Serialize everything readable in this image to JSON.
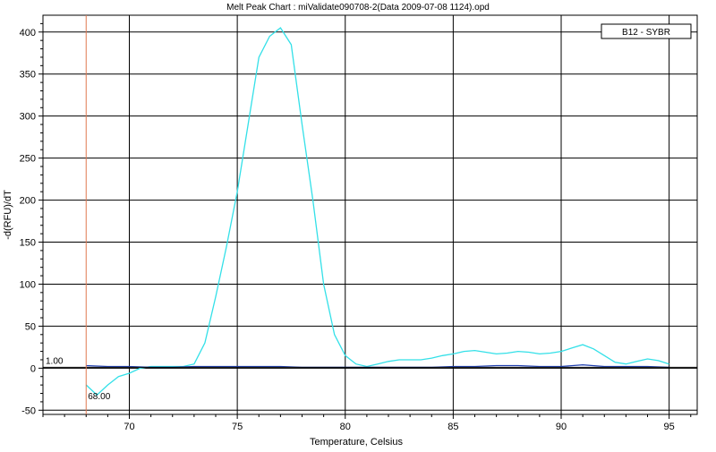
{
  "chart_data": {
    "type": "line",
    "title": "Melt Peak Chart : miValidate090708-2(Data 2009-07-08 1124).opd",
    "xlabel": "Temperature, Celsius",
    "ylabel": "-d(RFU)/dT",
    "xlim": [
      66.0,
      96.3
    ],
    "ylim": [
      -55,
      420
    ],
    "grid": true,
    "legend": {
      "position": "top-right",
      "entries": [
        "B12 - SYBR"
      ]
    },
    "x_ticks": [
      70,
      75,
      80,
      85,
      90,
      95
    ],
    "y_ticks": [
      -50,
      0,
      50,
      100,
      150,
      200,
      250,
      300,
      350,
      400
    ],
    "threshold": {
      "value": 1.0,
      "label": "1.00",
      "color": "#000000"
    },
    "marker": {
      "value": 68.0,
      "label": "68.00",
      "color": "#e07850"
    },
    "series": [
      {
        "name": "B12 - SYBR",
        "color": "#33e0e8",
        "x": [
          68.0,
          68.5,
          69.0,
          69.5,
          70.0,
          70.5,
          71.0,
          71.5,
          72.0,
          72.5,
          73.0,
          73.5,
          74.0,
          74.5,
          75.0,
          75.5,
          76.0,
          76.5,
          77.0,
          77.5,
          78.0,
          78.5,
          79.0,
          79.5,
          80.0,
          80.5,
          81.0,
          81.5,
          82.0,
          82.5,
          83.0,
          83.5,
          84.0,
          84.5,
          85.0,
          85.5,
          86.0,
          86.5,
          87.0,
          87.5,
          88.0,
          88.5,
          89.0,
          89.5,
          90.0,
          90.5,
          91.0,
          91.5,
          92.0,
          92.5,
          93.0,
          93.5,
          94.0,
          94.5,
          95.0
        ],
        "values": [
          -20,
          -32,
          -20,
          -10,
          -6,
          0,
          2,
          2,
          2,
          2,
          5,
          30,
          85,
          145,
          210,
          290,
          370,
          395,
          405,
          385,
          290,
          200,
          100,
          40,
          15,
          5,
          2,
          5,
          8,
          10,
          10,
          10,
          12,
          15,
          17,
          20,
          21,
          19,
          17,
          18,
          20,
          19,
          17,
          18,
          20,
          24,
          28,
          23,
          15,
          7,
          5,
          8,
          11,
          9,
          5
        ]
      },
      {
        "name": "",
        "color": "#1f3fb0",
        "x": [
          68.0,
          69.0,
          70.0,
          71.0,
          72.0,
          73.0,
          74.0,
          75.0,
          76.0,
          77.0,
          78.0,
          79.0,
          80.0,
          81.0,
          82.0,
          83.0,
          84.0,
          85.0,
          86.0,
          87.0,
          88.0,
          89.0,
          90.0,
          91.0,
          92.0,
          93.0,
          94.0,
          95.0
        ],
        "values": [
          3,
          2,
          2,
          1,
          1,
          2,
          2,
          2,
          2,
          2,
          1,
          1,
          1,
          1,
          1,
          1,
          1,
          2,
          2,
          3,
          3,
          2,
          2,
          4,
          2,
          2,
          2,
          1
        ]
      }
    ]
  }
}
